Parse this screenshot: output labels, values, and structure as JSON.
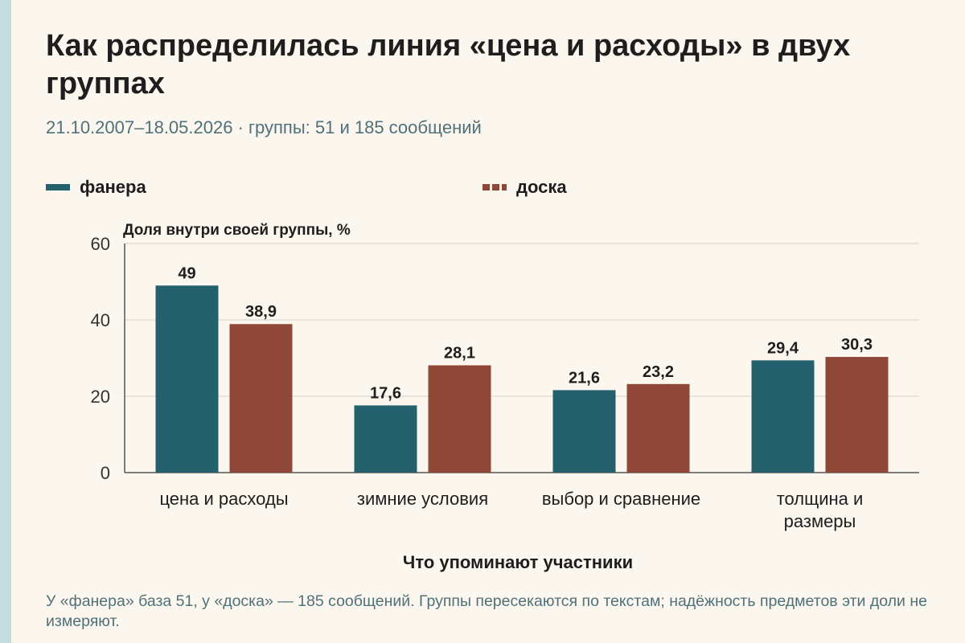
{
  "header": {
    "title": "Как распределилась линия «цена и расходы» в двух группах",
    "subtitle": "21.10.2007–18.05.2026 · группы: 51 и 185 сообщений"
  },
  "note": "У «фанера» база 51, у «доска» — 185 сообщений. Группы пересекаются по текстам; надёжность предметов эти доли не измеряют.",
  "chart_data": {
    "type": "bar",
    "categories": [
      [
        "цена и расходы"
      ],
      [
        "зимние условия"
      ],
      [
        "выбор и сравнение"
      ],
      [
        "толщина и",
        "размеры"
      ]
    ],
    "series": [
      {
        "name": "фанера",
        "color": "#25616c",
        "values": [
          49,
          17.6,
          21.6,
          29.4
        ],
        "labels": [
          "49",
          "17,6",
          "21,6",
          "29,4"
        ]
      },
      {
        "name": "доска",
        "color": "#8f4738",
        "values": [
          38.9,
          28.1,
          23.2,
          30.3
        ],
        "labels": [
          "38,9",
          "28,1",
          "23,2",
          "30,3"
        ]
      }
    ],
    "ylabel": "Доля внутри своей группы, %",
    "xlabel": "Что упоминают участники",
    "ylim": [
      0,
      60
    ],
    "yticks": [
      0,
      20,
      40,
      60
    ],
    "grid": true,
    "legend": "top"
  }
}
